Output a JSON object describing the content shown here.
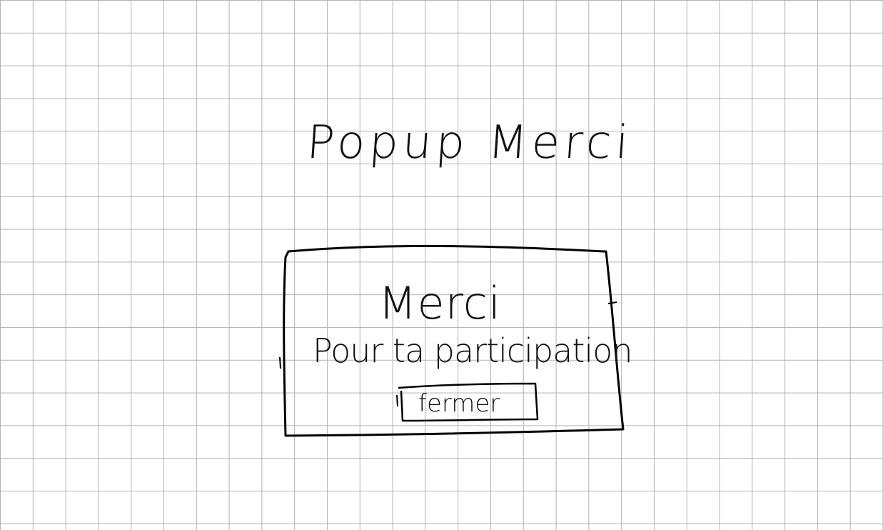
{
  "page": {
    "title": "Popup Merci"
  },
  "popup": {
    "heading": "Merci",
    "message": "Pour ta participation",
    "close_label": "fermer"
  }
}
